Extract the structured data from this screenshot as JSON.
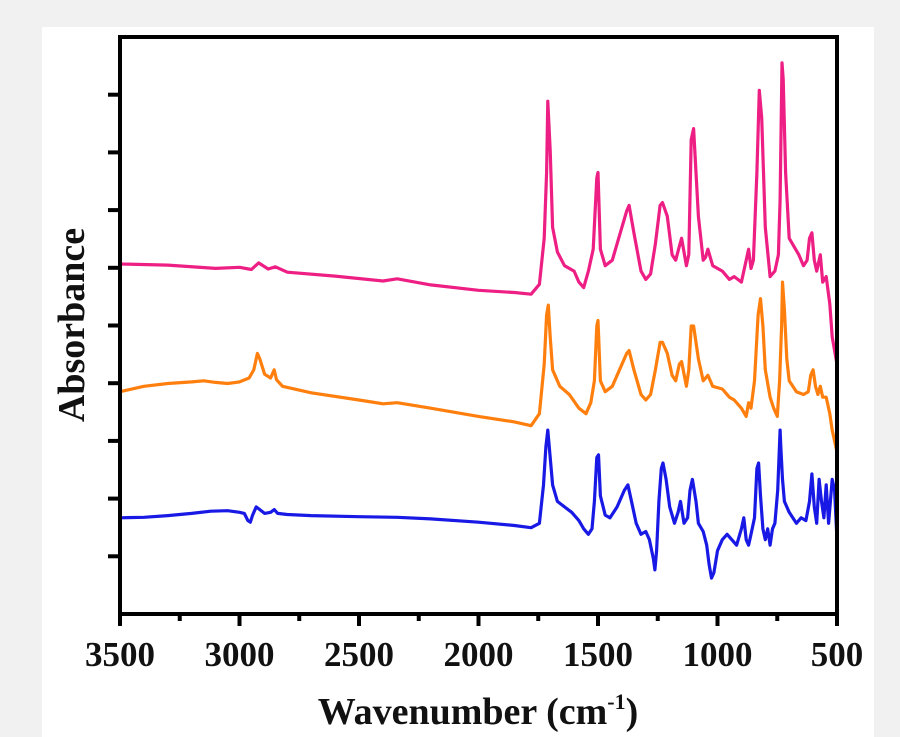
{
  "chart_data": {
    "type": "line",
    "title": "",
    "xlabel": "Wavenumber (cm",
    "xlabel_sup": "-1",
    "xlabel_close": ")",
    "ylabel": "Absorbance",
    "xlim": [
      3500,
      500
    ],
    "ylim": [
      0,
      1
    ],
    "x_ticks": [
      3500,
      3000,
      2500,
      2000,
      1500,
      1000,
      500
    ],
    "x_tick_labels": [
      "3500",
      "3000",
      "2500",
      "2000",
      "1500",
      "1000",
      "500"
    ],
    "y_tick_count": 10,
    "grid": false,
    "legend": "none",
    "series": [
      {
        "name": "pink",
        "color": "#ee1f84",
        "points": [
          [
            3500,
            0.633
          ],
          [
            3300,
            0.631
          ],
          [
            3100,
            0.625
          ],
          [
            3000,
            0.627
          ],
          [
            2950,
            0.623
          ],
          [
            2920,
            0.635
          ],
          [
            2880,
            0.624
          ],
          [
            2850,
            0.628
          ],
          [
            2800,
            0.618
          ],
          [
            2600,
            0.611
          ],
          [
            2400,
            0.602
          ],
          [
            2340,
            0.606
          ],
          [
            2200,
            0.595
          ],
          [
            2000,
            0.585
          ],
          [
            1850,
            0.581
          ],
          [
            1780,
            0.578
          ],
          [
            1745,
            0.596
          ],
          [
            1725,
            0.68
          ],
          [
            1715,
            0.8
          ],
          [
            1710,
            0.93
          ],
          [
            1700,
            0.84
          ],
          [
            1690,
            0.7
          ],
          [
            1670,
            0.655
          ],
          [
            1640,
            0.63
          ],
          [
            1600,
            0.62
          ],
          [
            1580,
            0.6
          ],
          [
            1560,
            0.59
          ],
          [
            1540,
            0.62
          ],
          [
            1520,
            0.66
          ],
          [
            1505,
            0.79
          ],
          [
            1500,
            0.8
          ],
          [
            1490,
            0.66
          ],
          [
            1470,
            0.63
          ],
          [
            1440,
            0.64
          ],
          [
            1420,
            0.67
          ],
          [
            1380,
            0.73
          ],
          [
            1370,
            0.74
          ],
          [
            1350,
            0.69
          ],
          [
            1320,
            0.62
          ],
          [
            1300,
            0.605
          ],
          [
            1280,
            0.615
          ],
          [
            1260,
            0.67
          ],
          [
            1240,
            0.74
          ],
          [
            1230,
            0.745
          ],
          [
            1210,
            0.72
          ],
          [
            1190,
            0.65
          ],
          [
            1175,
            0.64
          ],
          [
            1160,
            0.665
          ],
          [
            1150,
            0.68
          ],
          [
            1130,
            0.63
          ],
          [
            1120,
            0.65
          ],
          [
            1110,
            0.86
          ],
          [
            1100,
            0.88
          ],
          [
            1090,
            0.8
          ],
          [
            1080,
            0.72
          ],
          [
            1060,
            0.64
          ],
          [
            1050,
            0.645
          ],
          [
            1040,
            0.66
          ],
          [
            1020,
            0.63
          ],
          [
            980,
            0.62
          ],
          [
            950,
            0.605
          ],
          [
            930,
            0.61
          ],
          [
            900,
            0.6
          ],
          [
            880,
            0.64
          ],
          [
            870,
            0.66
          ],
          [
            860,
            0.625
          ],
          [
            850,
            0.64
          ],
          [
            835,
            0.8
          ],
          [
            825,
            0.95
          ],
          [
            815,
            0.9
          ],
          [
            800,
            0.7
          ],
          [
            780,
            0.61
          ],
          [
            760,
            0.62
          ],
          [
            745,
            0.65
          ],
          [
            738,
            0.75
          ],
          [
            730,
            1.0
          ],
          [
            725,
            0.97
          ],
          [
            715,
            0.8
          ],
          [
            700,
            0.68
          ],
          [
            660,
            0.65
          ],
          [
            640,
            0.63
          ],
          [
            625,
            0.64
          ],
          [
            615,
            0.68
          ],
          [
            605,
            0.69
          ],
          [
            595,
            0.64
          ],
          [
            585,
            0.62
          ],
          [
            570,
            0.65
          ],
          [
            560,
            0.6
          ],
          [
            545,
            0.61
          ],
          [
            530,
            0.56
          ],
          [
            520,
            0.5
          ],
          [
            500,
            0.45
          ]
        ]
      },
      {
        "name": "orange",
        "color": "#ff7f0e",
        "points": [
          [
            3500,
            0.4
          ],
          [
            3400,
            0.41
          ],
          [
            3300,
            0.415
          ],
          [
            3200,
            0.418
          ],
          [
            3150,
            0.42
          ],
          [
            3100,
            0.417
          ],
          [
            3050,
            0.415
          ],
          [
            3000,
            0.418
          ],
          [
            2960,
            0.425
          ],
          [
            2940,
            0.44
          ],
          [
            2925,
            0.47
          ],
          [
            2915,
            0.46
          ],
          [
            2895,
            0.432
          ],
          [
            2870,
            0.425
          ],
          [
            2855,
            0.44
          ],
          [
            2845,
            0.422
          ],
          [
            2820,
            0.41
          ],
          [
            2700,
            0.398
          ],
          [
            2500,
            0.385
          ],
          [
            2400,
            0.378
          ],
          [
            2340,
            0.38
          ],
          [
            2200,
            0.37
          ],
          [
            2000,
            0.355
          ],
          [
            1850,
            0.345
          ],
          [
            1780,
            0.338
          ],
          [
            1745,
            0.36
          ],
          [
            1725,
            0.45
          ],
          [
            1715,
            0.54
          ],
          [
            1708,
            0.558
          ],
          [
            1700,
            0.5
          ],
          [
            1690,
            0.44
          ],
          [
            1660,
            0.41
          ],
          [
            1620,
            0.395
          ],
          [
            1580,
            0.37
          ],
          [
            1550,
            0.36
          ],
          [
            1530,
            0.38
          ],
          [
            1515,
            0.42
          ],
          [
            1505,
            0.52
          ],
          [
            1500,
            0.53
          ],
          [
            1490,
            0.42
          ],
          [
            1470,
            0.4
          ],
          [
            1440,
            0.41
          ],
          [
            1420,
            0.43
          ],
          [
            1380,
            0.47
          ],
          [
            1370,
            0.475
          ],
          [
            1350,
            0.44
          ],
          [
            1320,
            0.395
          ],
          [
            1300,
            0.385
          ],
          [
            1280,
            0.395
          ],
          [
            1260,
            0.44
          ],
          [
            1240,
            0.49
          ],
          [
            1230,
            0.49
          ],
          [
            1210,
            0.47
          ],
          [
            1190,
            0.43
          ],
          [
            1175,
            0.42
          ],
          [
            1160,
            0.45
          ],
          [
            1150,
            0.455
          ],
          [
            1130,
            0.41
          ],
          [
            1120,
            0.44
          ],
          [
            1110,
            0.52
          ],
          [
            1100,
            0.52
          ],
          [
            1090,
            0.49
          ],
          [
            1080,
            0.46
          ],
          [
            1060,
            0.42
          ],
          [
            1040,
            0.43
          ],
          [
            1020,
            0.41
          ],
          [
            980,
            0.405
          ],
          [
            950,
            0.39
          ],
          [
            930,
            0.385
          ],
          [
            900,
            0.37
          ],
          [
            880,
            0.355
          ],
          [
            870,
            0.38
          ],
          [
            860,
            0.37
          ],
          [
            845,
            0.42
          ],
          [
            830,
            0.54
          ],
          [
            820,
            0.57
          ],
          [
            810,
            0.52
          ],
          [
            800,
            0.44
          ],
          [
            780,
            0.39
          ],
          [
            765,
            0.37
          ],
          [
            750,
            0.355
          ],
          [
            740,
            0.42
          ],
          [
            732,
            0.52
          ],
          [
            728,
            0.6
          ],
          [
            720,
            0.55
          ],
          [
            710,
            0.46
          ],
          [
            700,
            0.42
          ],
          [
            670,
            0.4
          ],
          [
            640,
            0.395
          ],
          [
            620,
            0.4
          ],
          [
            610,
            0.43
          ],
          [
            600,
            0.44
          ],
          [
            590,
            0.41
          ],
          [
            580,
            0.395
          ],
          [
            570,
            0.41
          ],
          [
            560,
            0.39
          ],
          [
            545,
            0.39
          ],
          [
            530,
            0.36
          ],
          [
            520,
            0.33
          ],
          [
            500,
            0.29
          ]
        ]
      },
      {
        "name": "blue",
        "color": "#1919e6",
        "points": [
          [
            3500,
            0.17
          ],
          [
            3400,
            0.171
          ],
          [
            3300,
            0.174
          ],
          [
            3200,
            0.178
          ],
          [
            3120,
            0.182
          ],
          [
            3050,
            0.183
          ],
          [
            3000,
            0.18
          ],
          [
            2980,
            0.178
          ],
          [
            2965,
            0.165
          ],
          [
            2955,
            0.162
          ],
          [
            2945,
            0.175
          ],
          [
            2930,
            0.19
          ],
          [
            2915,
            0.185
          ],
          [
            2895,
            0.178
          ],
          [
            2870,
            0.18
          ],
          [
            2855,
            0.185
          ],
          [
            2840,
            0.178
          ],
          [
            2800,
            0.176
          ],
          [
            2700,
            0.174
          ],
          [
            2500,
            0.172
          ],
          [
            2340,
            0.171
          ],
          [
            2200,
            0.168
          ],
          [
            2000,
            0.162
          ],
          [
            1850,
            0.156
          ],
          [
            1780,
            0.152
          ],
          [
            1745,
            0.16
          ],
          [
            1728,
            0.23
          ],
          [
            1718,
            0.3
          ],
          [
            1710,
            0.33
          ],
          [
            1700,
            0.28
          ],
          [
            1690,
            0.23
          ],
          [
            1670,
            0.2
          ],
          [
            1640,
            0.19
          ],
          [
            1610,
            0.18
          ],
          [
            1580,
            0.165
          ],
          [
            1560,
            0.15
          ],
          [
            1540,
            0.14
          ],
          [
            1525,
            0.15
          ],
          [
            1515,
            0.2
          ],
          [
            1505,
            0.28
          ],
          [
            1498,
            0.285
          ],
          [
            1490,
            0.21
          ],
          [
            1470,
            0.175
          ],
          [
            1450,
            0.17
          ],
          [
            1420,
            0.19
          ],
          [
            1390,
            0.22
          ],
          [
            1375,
            0.23
          ],
          [
            1360,
            0.2
          ],
          [
            1340,
            0.16
          ],
          [
            1320,
            0.14
          ],
          [
            1300,
            0.145
          ],
          [
            1285,
            0.13
          ],
          [
            1268,
            0.095
          ],
          [
            1262,
            0.075
          ],
          [
            1255,
            0.11
          ],
          [
            1245,
            0.2
          ],
          [
            1235,
            0.26
          ],
          [
            1228,
            0.27
          ],
          [
            1215,
            0.24
          ],
          [
            1200,
            0.19
          ],
          [
            1180,
            0.16
          ],
          [
            1165,
            0.18
          ],
          [
            1155,
            0.2
          ],
          [
            1140,
            0.16
          ],
          [
            1125,
            0.17
          ],
          [
            1115,
            0.22
          ],
          [
            1105,
            0.24
          ],
          [
            1090,
            0.2
          ],
          [
            1080,
            0.16
          ],
          [
            1060,
            0.145
          ],
          [
            1045,
            0.12
          ],
          [
            1035,
            0.085
          ],
          [
            1025,
            0.06
          ],
          [
            1015,
            0.07
          ],
          [
            1000,
            0.11
          ],
          [
            980,
            0.13
          ],
          [
            960,
            0.14
          ],
          [
            940,
            0.13
          ],
          [
            920,
            0.12
          ],
          [
            900,
            0.15
          ],
          [
            890,
            0.17
          ],
          [
            880,
            0.13
          ],
          [
            870,
            0.12
          ],
          [
            860,
            0.14
          ],
          [
            845,
            0.17
          ],
          [
            835,
            0.26
          ],
          [
            828,
            0.27
          ],
          [
            820,
            0.21
          ],
          [
            810,
            0.15
          ],
          [
            800,
            0.13
          ],
          [
            790,
            0.15
          ],
          [
            780,
            0.12
          ],
          [
            770,
            0.15
          ],
          [
            760,
            0.16
          ],
          [
            748,
            0.22
          ],
          [
            738,
            0.33
          ],
          [
            735,
            0.3
          ],
          [
            728,
            0.24
          ],
          [
            720,
            0.2
          ],
          [
            700,
            0.18
          ],
          [
            670,
            0.16
          ],
          [
            650,
            0.17
          ],
          [
            630,
            0.165
          ],
          [
            615,
            0.2
          ],
          [
            605,
            0.25
          ],
          [
            595,
            0.19
          ],
          [
            585,
            0.16
          ],
          [
            575,
            0.24
          ],
          [
            565,
            0.2
          ],
          [
            555,
            0.17
          ],
          [
            545,
            0.23
          ],
          [
            535,
            0.16
          ],
          [
            520,
            0.24
          ],
          [
            510,
            0.22
          ],
          [
            500,
            0.13
          ]
        ]
      }
    ]
  }
}
